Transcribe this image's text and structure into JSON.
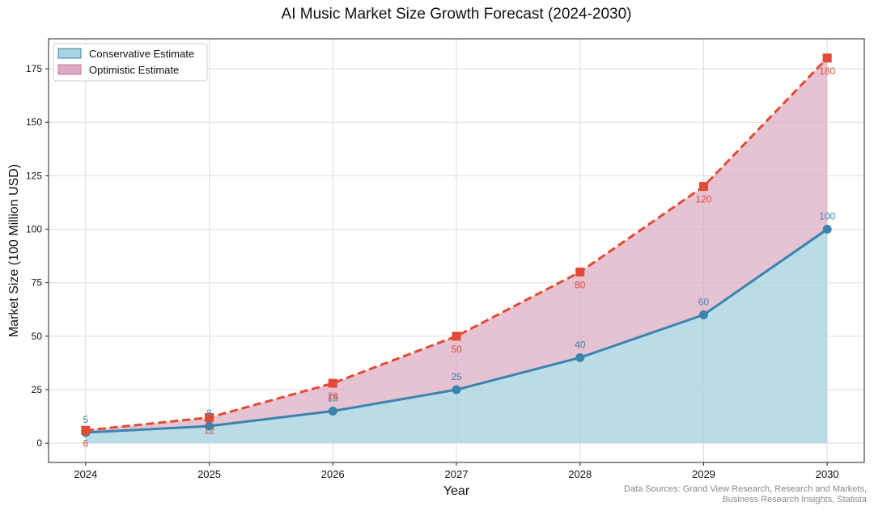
{
  "chart_data": {
    "type": "area",
    "title": "AI Music Market Size Growth Forecast (2024-2030)",
    "xlabel": "Year",
    "ylabel": "Market Size (100 Million USD)",
    "x": [
      2024,
      2025,
      2026,
      2027,
      2028,
      2029,
      2030
    ],
    "x_tick_labels": [
      "2024",
      "2025",
      "2026",
      "2027",
      "2028",
      "2029",
      "2030"
    ],
    "xlim": [
      2023.7,
      2030.3
    ],
    "ylim": [
      -9,
      189
    ],
    "y_ticks": [
      0,
      25,
      50,
      75,
      100,
      125,
      150,
      175
    ],
    "grid": true,
    "legend_position": "top-left",
    "series": [
      {
        "name": "Conservative Estimate",
        "values": [
          5,
          8,
          15,
          25,
          40,
          60,
          100
        ],
        "data_labels": [
          "5",
          "8",
          "15",
          "25",
          "40",
          "60",
          "100"
        ],
        "line_color": "#3b84ad",
        "fill_color": "#a9d3e0",
        "marker": "circle",
        "line_style": "solid"
      },
      {
        "name": "Optimistic Estimate",
        "values": [
          6,
          12,
          28,
          50,
          80,
          120,
          180
        ],
        "data_labels": [
          "6",
          "12",
          "28",
          "50",
          "80",
          "120",
          "180"
        ],
        "line_color": "#e24a33",
        "fill_color": "#dba9c0",
        "marker": "square",
        "line_style": "dashed"
      }
    ],
    "footnote": [
      "Data Sources: Grand View Research, Research and Markets,",
      "Business Research Insights, Statista"
    ]
  }
}
